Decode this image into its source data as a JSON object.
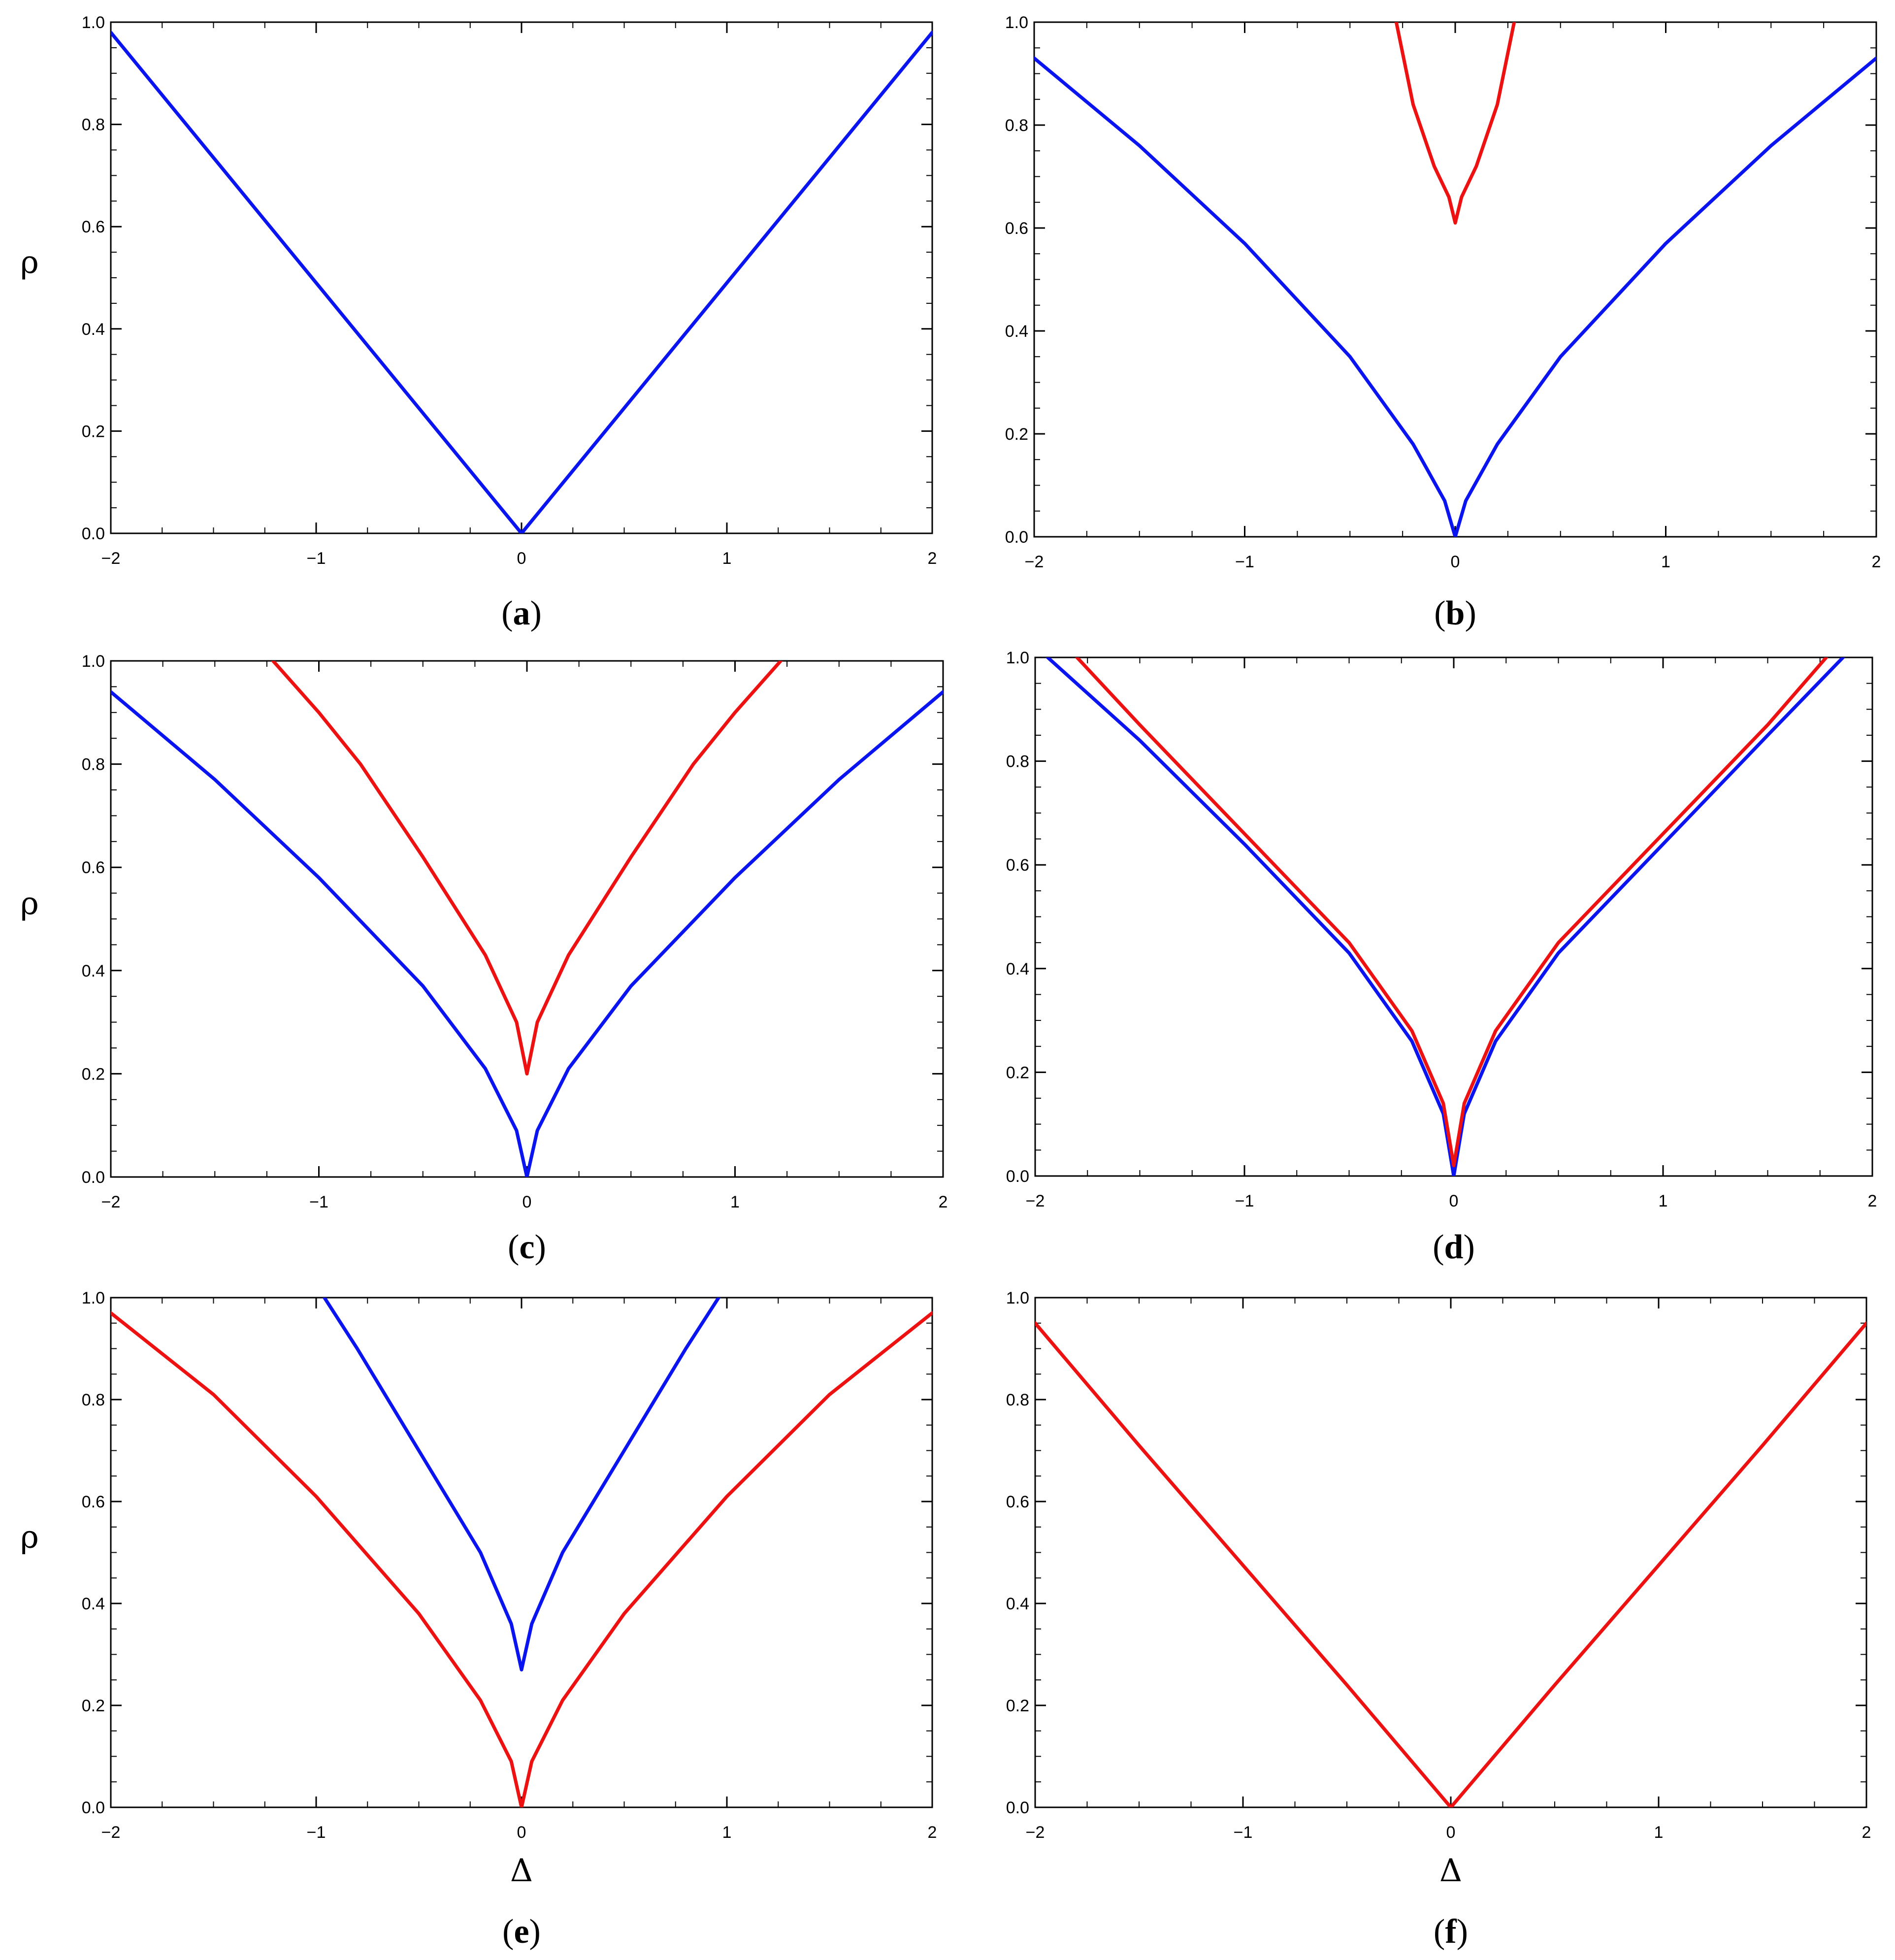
{
  "colors": {
    "blue": "#0a14f0",
    "red": "#ee1111"
  },
  "chart_data": [
    {
      "panel": "a",
      "caption_letter": "a",
      "type": "line",
      "ylabel": "ρ",
      "xlabel": "",
      "xlim": [
        -2,
        2
      ],
      "ylim": [
        0,
        1
      ],
      "xticks": [
        "−2",
        "−1",
        "0",
        "1",
        "2"
      ],
      "yticks": [
        "0.0",
        "0.2",
        "0.4",
        "0.6",
        "0.8",
        "1.0"
      ],
      "series": [
        {
          "color": "blue",
          "x": [
            -2,
            -1.5,
            -1,
            -0.5,
            0,
            0.5,
            1,
            1.5,
            2
          ],
          "y": [
            0.98,
            0.735,
            0.49,
            0.245,
            0,
            0.245,
            0.49,
            0.735,
            0.98
          ]
        }
      ]
    },
    {
      "panel": "b",
      "caption_letter": "b",
      "type": "line",
      "ylabel": "",
      "xlabel": "",
      "xlim": [
        -2,
        2
      ],
      "ylim": [
        0,
        1
      ],
      "xticks": [
        "−2",
        "−1",
        "0",
        "1",
        "2"
      ],
      "yticks": [
        "0.0",
        "0.2",
        "0.4",
        "0.6",
        "0.8",
        "1.0"
      ],
      "series": [
        {
          "color": "blue",
          "x": [
            -2,
            -1.5,
            -1,
            -0.5,
            -0.2,
            -0.05,
            0,
            0.05,
            0.2,
            0.5,
            1,
            1.5,
            2
          ],
          "y": [
            0.93,
            0.76,
            0.57,
            0.35,
            0.18,
            0.07,
            0,
            0.07,
            0.18,
            0.35,
            0.57,
            0.76,
            0.93
          ]
        },
        {
          "color": "red",
          "x": [
            -0.28,
            -0.2,
            -0.1,
            -0.03,
            0,
            0.03,
            0.1,
            0.2,
            0.28
          ],
          "y": [
            1.0,
            0.84,
            0.72,
            0.66,
            0.61,
            0.66,
            0.72,
            0.84,
            1.0
          ]
        }
      ]
    },
    {
      "panel": "c",
      "caption_letter": "c",
      "type": "line",
      "ylabel": "ρ",
      "xlabel": "",
      "xlim": [
        -2,
        2
      ],
      "ylim": [
        0,
        1
      ],
      "xticks": [
        "−2",
        "−1",
        "0",
        "1",
        "2"
      ],
      "yticks": [
        "0.0",
        "0.2",
        "0.4",
        "0.6",
        "0.8",
        "1.0"
      ],
      "series": [
        {
          "color": "blue",
          "x": [
            -2,
            -1.5,
            -1,
            -0.5,
            -0.2,
            -0.05,
            0,
            0.05,
            0.2,
            0.5,
            1,
            1.5,
            2
          ],
          "y": [
            0.94,
            0.77,
            0.58,
            0.37,
            0.21,
            0.09,
            0,
            0.09,
            0.21,
            0.37,
            0.58,
            0.77,
            0.94
          ]
        },
        {
          "color": "red",
          "x": [
            -1.22,
            -1,
            -0.8,
            -0.5,
            -0.2,
            -0.05,
            0,
            0.05,
            0.2,
            0.5,
            0.8,
            1,
            1.22
          ],
          "y": [
            1.0,
            0.9,
            0.8,
            0.62,
            0.43,
            0.3,
            0.2,
            0.3,
            0.43,
            0.62,
            0.8,
            0.9,
            1.0
          ]
        }
      ]
    },
    {
      "panel": "d",
      "caption_letter": "d",
      "type": "line",
      "ylabel": "",
      "xlabel": "",
      "xlim": [
        -2,
        2
      ],
      "ylim": [
        0,
        1
      ],
      "xticks": [
        "−2",
        "−1",
        "0",
        "1",
        "2"
      ],
      "yticks": [
        "0.0",
        "0.2",
        "0.4",
        "0.6",
        "0.8",
        "1.0"
      ],
      "series": [
        {
          "color": "blue",
          "x": [
            -1.94,
            -1.5,
            -1,
            -0.5,
            -0.2,
            -0.05,
            0,
            0.05,
            0.2,
            0.5,
            1,
            1.5,
            1.86
          ],
          "y": [
            1.0,
            0.84,
            0.64,
            0.43,
            0.26,
            0.12,
            0,
            0.12,
            0.26,
            0.43,
            0.64,
            0.85,
            1.0
          ]
        },
        {
          "color": "red",
          "x": [
            -1.8,
            -1.5,
            -1,
            -0.5,
            -0.2,
            -0.05,
            0,
            0.05,
            0.2,
            0.5,
            1,
            1.5,
            1.78
          ],
          "y": [
            1.0,
            0.87,
            0.66,
            0.45,
            0.28,
            0.14,
            0.02,
            0.14,
            0.28,
            0.45,
            0.66,
            0.87,
            1.0
          ]
        }
      ]
    },
    {
      "panel": "e",
      "caption_letter": "e",
      "type": "line",
      "ylabel": "ρ",
      "xlabel": "Δ",
      "xlim": [
        -2,
        2
      ],
      "ylim": [
        0,
        1
      ],
      "xticks": [
        "−2",
        "−1",
        "0",
        "1",
        "2"
      ],
      "yticks": [
        "0.0",
        "0.2",
        "0.4",
        "0.6",
        "0.8",
        "1.0"
      ],
      "series": [
        {
          "color": "red",
          "x": [
            -2,
            -1.5,
            -1,
            -0.5,
            -0.2,
            -0.05,
            0,
            0.05,
            0.2,
            0.5,
            1,
            1.5,
            2
          ],
          "y": [
            0.97,
            0.81,
            0.61,
            0.38,
            0.21,
            0.09,
            0,
            0.09,
            0.21,
            0.38,
            0.61,
            0.81,
            0.97
          ]
        },
        {
          "color": "blue",
          "x": [
            -0.96,
            -0.8,
            -0.5,
            -0.2,
            -0.05,
            0,
            0.05,
            0.2,
            0.5,
            0.8,
            0.96
          ],
          "y": [
            1.0,
            0.9,
            0.7,
            0.5,
            0.36,
            0.27,
            0.36,
            0.5,
            0.7,
            0.9,
            1.0
          ]
        }
      ]
    },
    {
      "panel": "f",
      "caption_letter": "f",
      "type": "line",
      "ylabel": "",
      "xlabel": "Δ",
      "xlim": [
        -2,
        2
      ],
      "ylim": [
        0,
        1
      ],
      "xticks": [
        "−2",
        "−1",
        "0",
        "1",
        "2"
      ],
      "yticks": [
        "0.0",
        "0.2",
        "0.4",
        "0.6",
        "0.8",
        "1.0"
      ],
      "series": [
        {
          "color": "red",
          "x": [
            -2,
            -1.5,
            -1,
            -0.5,
            0,
            0.5,
            1,
            1.5,
            2
          ],
          "y": [
            0.95,
            0.71,
            0.475,
            0.24,
            0,
            0.24,
            0.475,
            0.71,
            0.95
          ]
        }
      ]
    }
  ]
}
